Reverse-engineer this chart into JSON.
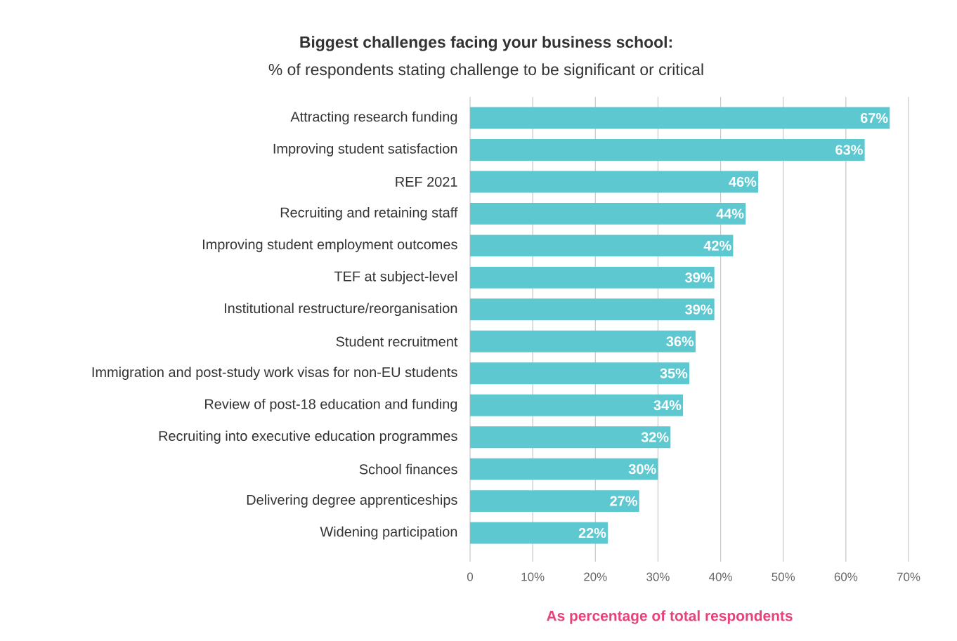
{
  "chart_data": {
    "type": "bar",
    "orientation": "horizontal",
    "title": "Biggest challenges facing your business school:",
    "subtitle": "% of respondents stating challenge to be significant or critical",
    "xlabel": "As percentage of total respondents",
    "categories": [
      "Attracting research funding",
      "Improving student satisfaction",
      "REF 2021",
      "Recruiting and retaining staff",
      "Improving student employment outcomes",
      "TEF at subject-level",
      "Institutional restructure/reorganisation",
      "Student recruitment",
      "Immigration and post-study work visas for non-EU students",
      "Review of post-18 education and funding",
      "Recruiting into executive education programmes",
      "School finances",
      "Delivering degree apprenticeships",
      "Widening participation"
    ],
    "values": [
      67,
      63,
      46,
      44,
      42,
      39,
      39,
      36,
      35,
      34,
      32,
      30,
      27,
      22
    ],
    "value_labels": [
      "67%",
      "63%",
      "46%",
      "44%",
      "42%",
      "39%",
      "39%",
      "36%",
      "35%",
      "34%",
      "32%",
      "30%",
      "27%",
      "22%"
    ],
    "color": "#5ec8d1",
    "xlim": [
      0,
      70
    ],
    "xticks": [
      0,
      {
        "value": 10,
        "label": "10%"
      },
      {
        "value": 20,
        "label": "20%"
      },
      {
        "value": 30,
        "label": "30%"
      },
      {
        "value": 40,
        "label": "40%"
      },
      {
        "value": 50,
        "label": "50%"
      },
      {
        "value": 60,
        "label": "60%"
      },
      {
        "value": 70,
        "label": "70%"
      }
    ],
    "grid": "x"
  }
}
